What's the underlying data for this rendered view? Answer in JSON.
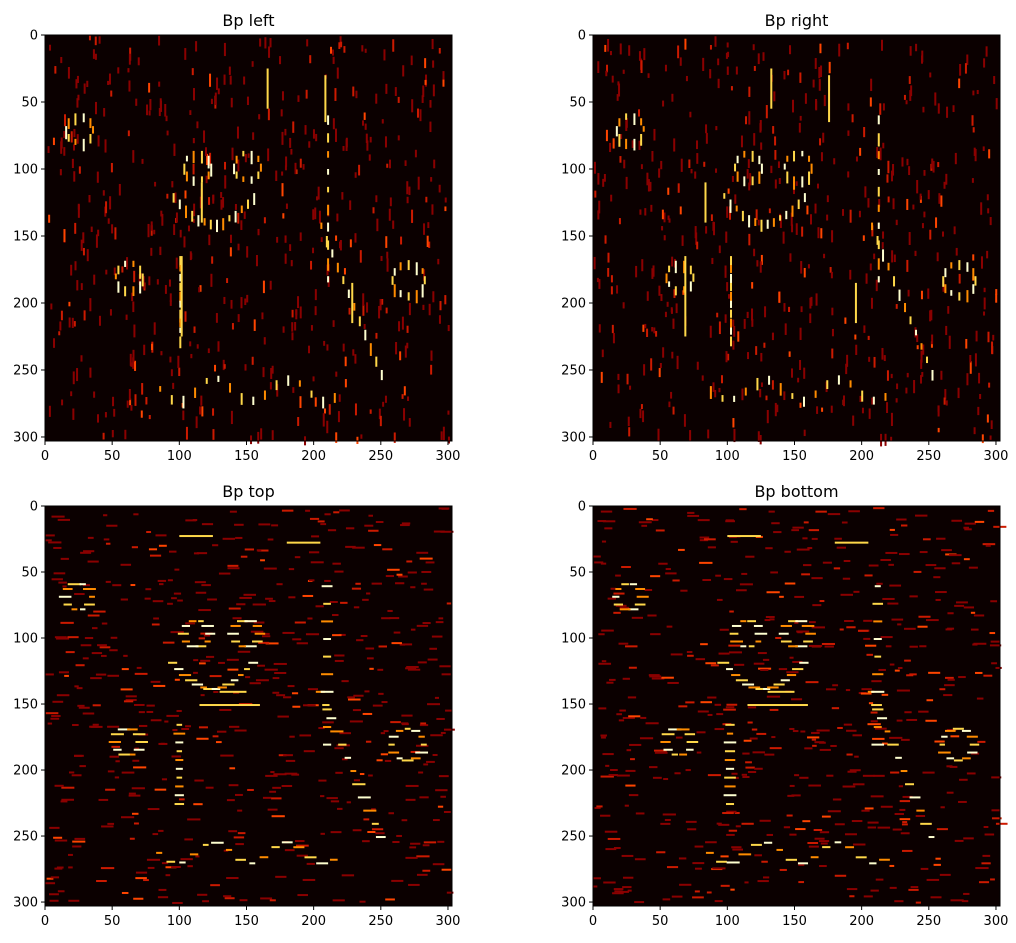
{
  "figure": {
    "colormap": "hot",
    "background_color": "#0b0000",
    "mark_colors": [
      "#8b0000",
      "#cc1a00",
      "#ff4500",
      "#ff8c00",
      "#ffd84a",
      "#ffffd0"
    ]
  },
  "chart_data": [
    {
      "type": "heatmap",
      "title": "Bp left",
      "grid": false,
      "edge_orientation": "vertical",
      "xlim": [
        0,
        303
      ],
      "ylim": [
        303,
        0
      ],
      "x_ticks": [
        0,
        50,
        100,
        150,
        200,
        250,
        300
      ],
      "y_ticks": [
        0,
        50,
        100,
        150,
        200,
        250,
        300
      ]
    },
    {
      "type": "heatmap",
      "title": "Bp right",
      "grid": false,
      "edge_orientation": "vertical",
      "xlim": [
        0,
        303
      ],
      "ylim": [
        303,
        0
      ],
      "x_ticks": [
        0,
        50,
        100,
        150,
        200,
        250,
        300
      ],
      "y_ticks": [
        0,
        50,
        100,
        150,
        200,
        250,
        300
      ]
    },
    {
      "type": "heatmap",
      "title": "Bp top",
      "grid": false,
      "edge_orientation": "horizontal",
      "xlim": [
        0,
        303
      ],
      "ylim": [
        303,
        0
      ],
      "x_ticks": [
        0,
        50,
        100,
        150,
        200,
        250,
        300
      ],
      "y_ticks": [
        0,
        50,
        100,
        150,
        200,
        250,
        300
      ]
    },
    {
      "type": "heatmap",
      "title": "Bp bottom",
      "grid": false,
      "edge_orientation": "horizontal",
      "xlim": [
        0,
        303
      ],
      "ylim": [
        303,
        0
      ],
      "x_ticks": [
        0,
        50,
        100,
        150,
        200,
        250,
        300
      ],
      "y_ticks": [
        0,
        50,
        100,
        150,
        200,
        250,
        300
      ]
    }
  ]
}
